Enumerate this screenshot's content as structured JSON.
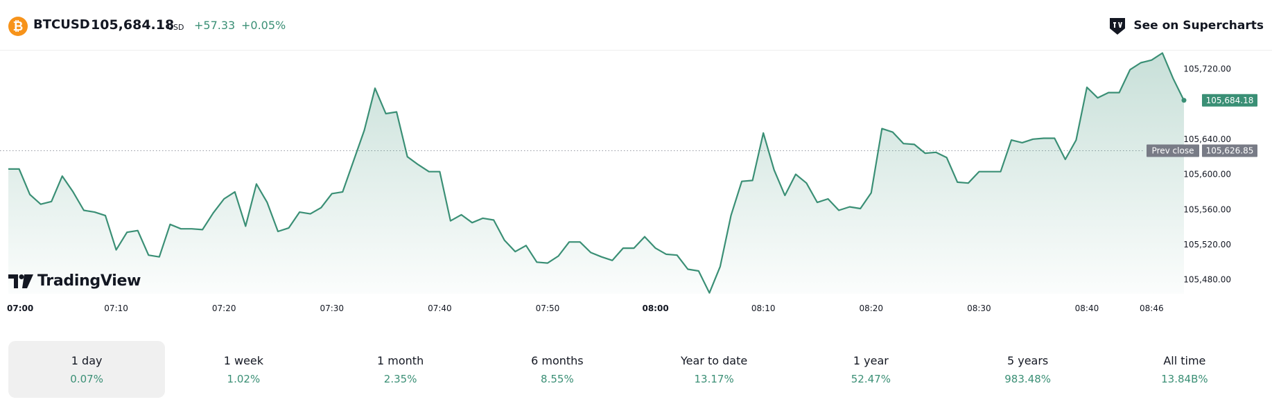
{
  "header": {
    "icon_glyph": "₿",
    "symbol": "BTCUSD",
    "price": "105,684.18",
    "currency": "USD",
    "change": "+57.33",
    "change_pct": "+0.05%",
    "supercharts_label": "See on Supercharts"
  },
  "logo": {
    "text": "TradingView"
  },
  "colors": {
    "line": "#3a8f75",
    "positive": "#3a8f75",
    "bitcoin": "#f7931a",
    "prev_close_tag": "#787b86"
  },
  "chart_data": {
    "type": "area",
    "x_ticks": [
      "07:00",
      "07:10",
      "07:20",
      "07:30",
      "07:40",
      "07:50",
      "08:00",
      "08:10",
      "08:20",
      "08:30",
      "08:40",
      "08:46"
    ],
    "bold_ticks": [
      "07:00",
      "08:00"
    ],
    "y_ticks": [
      "105,720.00",
      "105,640.00",
      "105,600.00",
      "105,560.00",
      "105,520.00",
      "105,480.00"
    ],
    "y_tick_values": [
      105720,
      105640,
      105600,
      105560,
      105520,
      105480
    ],
    "ylim": [
      105464,
      105740
    ],
    "last_price_label": "105,684.18",
    "last_price": 105684.18,
    "prev_close_label": "Prev close",
    "prev_close_value": "105,626.85",
    "prev_close": 105626.85,
    "series": [
      {
        "x_minutes": [
          0,
          1,
          2,
          3,
          4,
          5,
          6,
          7,
          8,
          9,
          10,
          11,
          12,
          13,
          14,
          15,
          16,
          17,
          18,
          19,
          20,
          21,
          22,
          23,
          24,
          25,
          26,
          27,
          28,
          29,
          30,
          31,
          32,
          33,
          34,
          35,
          36,
          37,
          38,
          39,
          40,
          41,
          42,
          43,
          44,
          45,
          46,
          47,
          48,
          49,
          50,
          51,
          52,
          53,
          54,
          55,
          56,
          57,
          58,
          59,
          60,
          61,
          62,
          63,
          64,
          65,
          66,
          67,
          68,
          69,
          70,
          71,
          72,
          73,
          74,
          75,
          76,
          77,
          78,
          79,
          80,
          81,
          82,
          83,
          84,
          85,
          86,
          87,
          88,
          89,
          90,
          91,
          92,
          93,
          94,
          95,
          96,
          97,
          98,
          99,
          100,
          101,
          102,
          103,
          104,
          105,
          106,
          107,
          108,
          109
        ],
        "values": [
          105606,
          105606,
          105577,
          105566,
          105569,
          105598,
          105580,
          105559,
          105557,
          105553,
          105514,
          105534,
          105536,
          105508,
          105506,
          105543,
          105538,
          105538,
          105537,
          105556,
          105572,
          105580,
          105541,
          105589,
          105568,
          105535,
          105539,
          105557,
          105555,
          105562,
          105578,
          105580,
          105615,
          105650,
          105698,
          105669,
          105671,
          105620,
          105611,
          105603,
          105603,
          105547,
          105554,
          105545,
          105550,
          105548,
          105525,
          105512,
          105519,
          105500,
          105499,
          105507,
          105523,
          105523,
          105511,
          105506,
          105502,
          105516,
          105516,
          105529,
          105516,
          105509,
          105508,
          105492,
          105490,
          105465,
          105495,
          105553,
          105592,
          105593,
          105647,
          105605,
          105576,
          105600,
          105590,
          105568,
          105572,
          105559,
          105563,
          105561,
          105579,
          105652,
          105648,
          105635,
          105634,
          105624,
          105625,
          105619,
          105591,
          105590,
          105603,
          105603,
          105603,
          105639,
          105636,
          105640,
          105641,
          105641,
          105617,
          105639,
          105699,
          105687,
          105693,
          105693,
          105719,
          105727,
          105730,
          105738,
          105709,
          105684
        ]
      }
    ]
  },
  "periods": [
    {
      "label": "1 day",
      "value": "0.07%",
      "active": true
    },
    {
      "label": "1 week",
      "value": "1.02%"
    },
    {
      "label": "1 month",
      "value": "2.35%"
    },
    {
      "label": "6 months",
      "value": "8.55%"
    },
    {
      "label": "Year to date",
      "value": "13.17%"
    },
    {
      "label": "1 year",
      "value": "52.47%"
    },
    {
      "label": "5 years",
      "value": "983.48%"
    },
    {
      "label": "All time",
      "value": "13.84B%"
    }
  ]
}
